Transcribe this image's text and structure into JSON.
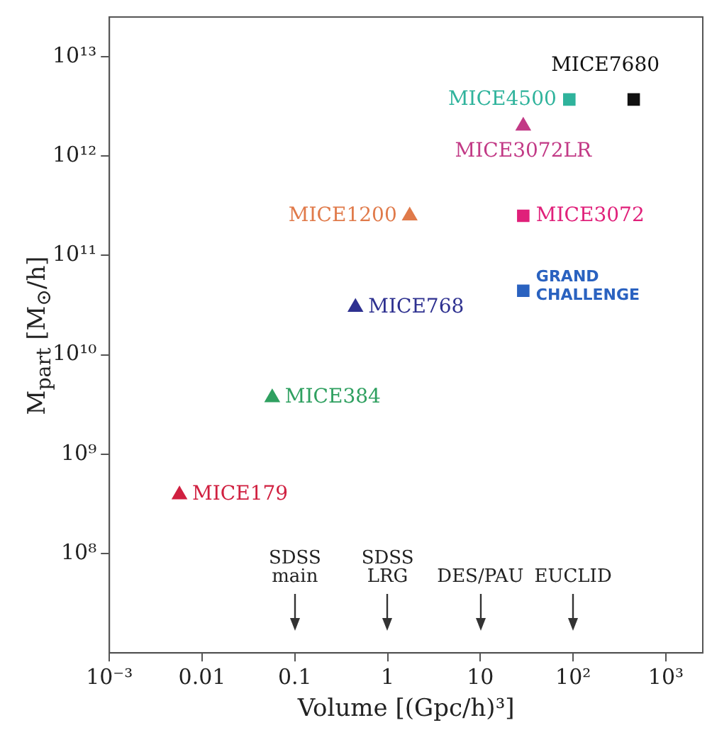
{
  "chart_data": {
    "type": "scatter",
    "xlabel": "Volume [(Gpc/h)³]",
    "ylabel": "M$_{part}$ [M$_{⊙}$/h]",
    "log": "xy",
    "xlim": [
      0.001,
      2500
    ],
    "xticks": [
      {
        "value": 0.001,
        "label": "10⁻³"
      },
      0.01,
      0.1,
      1,
      10,
      {
        "value": 100,
        "label": "10²"
      },
      {
        "value": 1000,
        "label": "10³"
      }
    ],
    "ylim": [
      10000000,
      25000000000000
    ],
    "yticks": [
      {
        "value": 100000000,
        "label": "10⁸"
      },
      {
        "value": 1000000000,
        "label": "10⁹"
      },
      {
        "value": 10000000000,
        "label": "10¹⁰"
      },
      {
        "value": 100000000000,
        "label": "10¹¹"
      },
      {
        "value": 1000000000000,
        "label": "10¹²"
      },
      {
        "value": 10000000000000,
        "label": "10¹³"
      }
    ],
    "grid": false,
    "legend": false,
    "series": [
      {
        "name": "MICE7680",
        "color": "#111111",
        "marker": "square",
        "x": [
          450
        ],
        "values": [
          3700000000000
        ]
      },
      {
        "name": "MICE4500",
        "color": "#2fb39c",
        "marker": "square",
        "x": [
          91
        ],
        "values": [
          3700000000000
        ]
      },
      {
        "name": "MICE3072LR",
        "color": "#c23a86",
        "marker": "triangle",
        "x": [
          29
        ],
        "values": [
          2000000000000
        ]
      },
      {
        "name": "MICE1200",
        "color": "#e07a4a",
        "marker": "triangle",
        "x": [
          1.73
        ],
        "values": [
          250000000000
        ]
      },
      {
        "name": "MICE3072",
        "color": "#e0207a",
        "marker": "square",
        "x": [
          29
        ],
        "values": [
          250000000000
        ]
      },
      {
        "name": "GRAND CHALLENGE",
        "color": "#2a62c0",
        "marker": "square",
        "x": [
          29
        ],
        "values": [
          44000000000
        ]
      },
      {
        "name": "MICE768",
        "color": "#2e3190",
        "marker": "triangle",
        "x": [
          0.45
        ],
        "values": [
          30000000000
        ]
      },
      {
        "name": "MICE384",
        "color": "#2fa060",
        "marker": "triangle",
        "x": [
          0.057
        ],
        "values": [
          3700000000
        ]
      },
      {
        "name": "MICE179",
        "color": "#d02040",
        "marker": "triangle",
        "x": [
          0.0057
        ],
        "values": [
          390000000
        ]
      }
    ],
    "ref_lines": [
      {
        "axis": "x",
        "value": 0.1,
        "label": "SDSS main"
      },
      {
        "axis": "x",
        "value": 1,
        "label": "SDSS LRG"
      },
      {
        "axis": "x",
        "value": 10,
        "label": "DES/PAU"
      },
      {
        "axis": "x",
        "value": 100,
        "label": "EUCLID"
      }
    ]
  }
}
